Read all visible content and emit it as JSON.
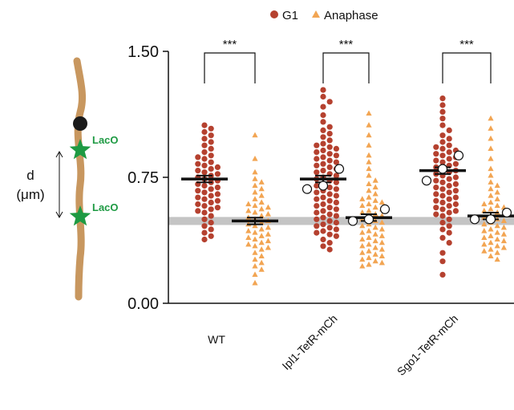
{
  "chart_data": {
    "type": "scatter",
    "legend": {
      "position": "top-center",
      "entries": [
        {
          "label": "G1",
          "color": "#b5412f",
          "marker": "circle"
        },
        {
          "label": "Anaphase",
          "color": "#f2a553",
          "marker": "triangle"
        }
      ]
    },
    "yaxis": {
      "ylim": [
        0,
        1.5
      ],
      "ticks": [
        "0.00",
        "0.75",
        "1.50"
      ],
      "tick_values": [
        0,
        0.75,
        1.5
      ]
    },
    "xaxis": {
      "categories": [
        "WT",
        "Ipl1-TetR-mCh",
        "Sgo1-TetR-mCh"
      ]
    },
    "reference_line": {
      "y": 0.49,
      "color": "#c4c4c4"
    },
    "significance": [
      "***",
      "***",
      "***"
    ],
    "groups": [
      {
        "category": "WT",
        "series": [
          {
            "name": "G1",
            "mean": 0.74,
            "sem": 0.02,
            "values": [
              1.06,
              1.04,
              1.02,
              1.0,
              0.98,
              0.96,
              0.94,
              0.92,
              0.9,
              0.88,
              0.87,
              0.86,
              0.84,
              0.83,
              0.82,
              0.81,
              0.8,
              0.79,
              0.78,
              0.77,
              0.76,
              0.75,
              0.74,
              0.73,
              0.72,
              0.71,
              0.7,
              0.69,
              0.68,
              0.67,
              0.66,
              0.65,
              0.64,
              0.63,
              0.62,
              0.61,
              0.6,
              0.59,
              0.58,
              0.57,
              0.56,
              0.55,
              0.54,
              0.52,
              0.5,
              0.48,
              0.46,
              0.44,
              0.42,
              0.4,
              0.38
            ],
            "replicate_means": []
          },
          {
            "name": "Anaphase",
            "mean": 0.49,
            "sem": 0.02,
            "values": [
              1.0,
              0.86,
              0.78,
              0.74,
              0.72,
              0.7,
              0.68,
              0.66,
              0.64,
              0.62,
              0.6,
              0.59,
              0.58,
              0.57,
              0.56,
              0.55,
              0.54,
              0.53,
              0.52,
              0.51,
              0.5,
              0.49,
              0.48,
              0.47,
              0.46,
              0.45,
              0.44,
              0.43,
              0.42,
              0.41,
              0.4,
              0.39,
              0.38,
              0.37,
              0.36,
              0.35,
              0.34,
              0.33,
              0.32,
              0.3,
              0.28,
              0.26,
              0.24,
              0.22,
              0.2,
              0.17,
              0.12
            ],
            "replicate_means": []
          }
        ]
      },
      {
        "category": "Ipl1-TetR-mCh",
        "series": [
          {
            "name": "G1",
            "mean": 0.74,
            "sem": 0.02,
            "values": [
              1.27,
              1.23,
              1.2,
              1.17,
              1.12,
              1.08,
              1.05,
              1.03,
              1.01,
              0.99,
              0.97,
              0.95,
              0.94,
              0.93,
              0.92,
              0.91,
              0.9,
              0.89,
              0.88,
              0.87,
              0.86,
              0.85,
              0.84,
              0.83,
              0.82,
              0.81,
              0.8,
              0.79,
              0.78,
              0.77,
              0.76,
              0.75,
              0.74,
              0.73,
              0.72,
              0.71,
              0.7,
              0.69,
              0.68,
              0.67,
              0.66,
              0.65,
              0.64,
              0.63,
              0.62,
              0.61,
              0.6,
              0.59,
              0.58,
              0.57,
              0.56,
              0.55,
              0.54,
              0.53,
              0.52,
              0.51,
              0.5,
              0.49,
              0.48,
              0.47,
              0.46,
              0.45,
              0.44,
              0.43,
              0.42,
              0.41,
              0.4,
              0.38,
              0.36,
              0.34,
              0.32
            ],
            "replicate_means": [
              0.8,
              0.7,
              0.68
            ]
          },
          {
            "name": "Anaphase",
            "mean": 0.51,
            "sem": 0.02,
            "values": [
              1.13,
              1.06,
              1.0,
              0.94,
              0.88,
              0.84,
              0.8,
              0.76,
              0.73,
              0.71,
              0.69,
              0.67,
              0.65,
              0.63,
              0.62,
              0.61,
              0.6,
              0.59,
              0.58,
              0.57,
              0.56,
              0.55,
              0.54,
              0.53,
              0.52,
              0.51,
              0.5,
              0.49,
              0.48,
              0.47,
              0.46,
              0.45,
              0.44,
              0.43,
              0.42,
              0.41,
              0.4,
              0.39,
              0.38,
              0.37,
              0.36,
              0.35,
              0.34,
              0.33,
              0.32,
              0.31,
              0.3,
              0.29,
              0.28,
              0.27,
              0.26,
              0.25,
              0.24,
              0.23,
              0.22
            ],
            "replicate_means": [
              0.56,
              0.5,
              0.49
            ]
          }
        ]
      },
      {
        "category": "Sgo1-TetR-mCh",
        "series": [
          {
            "name": "G1",
            "mean": 0.79,
            "sem": 0.02,
            "values": [
              1.22,
              1.18,
              1.14,
              1.1,
              1.06,
              1.03,
              1.0,
              0.98,
              0.96,
              0.94,
              0.93,
              0.92,
              0.91,
              0.9,
              0.89,
              0.88,
              0.87,
              0.86,
              0.85,
              0.84,
              0.83,
              0.82,
              0.81,
              0.8,
              0.79,
              0.78,
              0.77,
              0.76,
              0.75,
              0.74,
              0.73,
              0.72,
              0.71,
              0.7,
              0.69,
              0.68,
              0.67,
              0.66,
              0.65,
              0.64,
              0.63,
              0.62,
              0.61,
              0.6,
              0.59,
              0.58,
              0.57,
              0.56,
              0.55,
              0.54,
              0.53,
              0.52,
              0.5,
              0.48,
              0.46,
              0.44,
              0.42,
              0.39,
              0.36,
              0.3,
              0.25,
              0.17
            ],
            "replicate_means": [
              0.88,
              0.8,
              0.73
            ]
          },
          {
            "name": "Anaphase",
            "mean": 0.52,
            "sem": 0.02,
            "values": [
              1.1,
              1.04,
              0.98,
              0.92,
              0.86,
              0.8,
              0.76,
              0.72,
              0.7,
              0.68,
              0.66,
              0.64,
              0.62,
              0.6,
              0.59,
              0.58,
              0.57,
              0.56,
              0.55,
              0.54,
              0.53,
              0.52,
              0.51,
              0.5,
              0.49,
              0.48,
              0.47,
              0.46,
              0.45,
              0.44,
              0.43,
              0.42,
              0.41,
              0.4,
              0.39,
              0.38,
              0.37,
              0.36,
              0.35,
              0.34,
              0.33,
              0.32,
              0.31,
              0.3,
              0.28,
              0.26
            ],
            "replicate_means": [
              0.54,
              0.5,
              0.5
            ]
          }
        ]
      }
    ]
  },
  "diagram": {
    "axis_symbol": "d",
    "axis_unit": "(μm)",
    "marker_label_top": "LacO",
    "marker_label_bottom": "LacO",
    "chromosome_color": "#c8975f",
    "centromere_color": "#1a1a1a",
    "lacO_color": "#1e9a43"
  }
}
